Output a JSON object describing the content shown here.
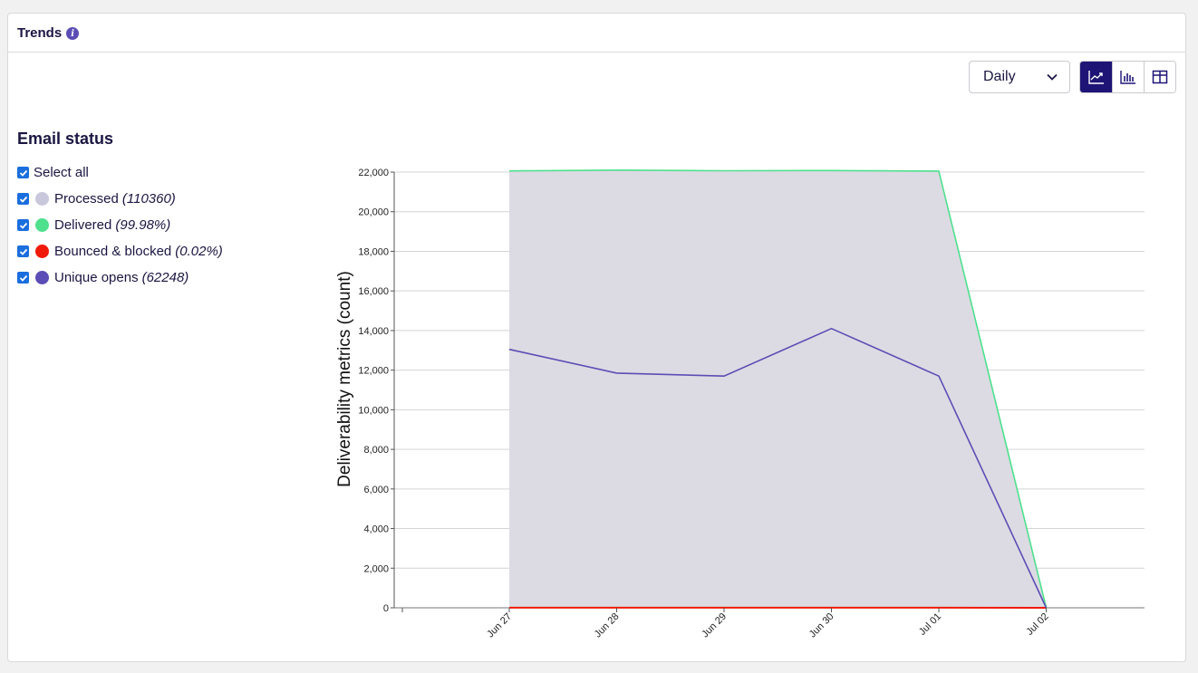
{
  "header": {
    "title": "Trends"
  },
  "controls": {
    "interval_select": "Daily",
    "views": [
      {
        "name": "line-chart-view",
        "icon": "line-chart-icon",
        "active": true
      },
      {
        "name": "bar-chart-view",
        "icon": "bar-chart-icon",
        "active": false
      },
      {
        "name": "table-view",
        "icon": "table-icon",
        "active": false
      }
    ],
    "accent": "#1e1476"
  },
  "legend": {
    "title": "Email status",
    "select_all": "Select all",
    "items": [
      {
        "label": "Processed",
        "value": "(110360)",
        "color": "#c9c7dc",
        "checked": true
      },
      {
        "label": "Delivered",
        "value": "(99.98%)",
        "color": "#4fe08e",
        "checked": true
      },
      {
        "label": "Bounced & blocked",
        "value": "(0.02%)",
        "color": "#f01a08",
        "checked": true
      },
      {
        "label": "Unique opens",
        "value": "(62248)",
        "color": "#5b4db5",
        "checked": true
      }
    ]
  },
  "chart_data": {
    "type": "line",
    "ylabel": "Deliverability metrics (count)",
    "xlabel": "",
    "x": [
      "Jun 27",
      "Jun 28",
      "Jun 29",
      "Jun 30",
      "Jul 01",
      "Jul 02"
    ],
    "ylim": [
      0,
      22000
    ],
    "yticks": [
      "0",
      "2,000",
      "4,000",
      "6,000",
      "8,000",
      "10,000",
      "12,000",
      "14,000",
      "16,000",
      "18,000",
      "20,000",
      "22,000"
    ],
    "grid": true,
    "series": [
      {
        "name": "Processed",
        "type": "area",
        "color": "#dcdbe3",
        "values": [
          22070,
          22100,
          22080,
          22080,
          22060,
          0
        ]
      },
      {
        "name": "Delivered",
        "color": "#4fe08e",
        "values": [
          22060,
          22100,
          22070,
          22080,
          22050,
          0
        ]
      },
      {
        "name": "Bounced & blocked",
        "color": "#f01a08",
        "values": [
          5,
          4,
          4,
          4,
          5,
          0
        ]
      },
      {
        "name": "Unique opens",
        "color": "#5b4db5",
        "values": [
          13050,
          11850,
          11700,
          14100,
          11700,
          0
        ]
      }
    ]
  }
}
